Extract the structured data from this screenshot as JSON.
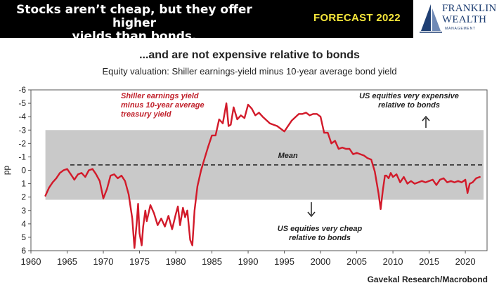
{
  "header": {
    "title_line1": "Stocks aren’t cheap, but they offer higher",
    "title_line2": "yields than bonds.",
    "badge": "FORECAST 2022",
    "logo": {
      "word1": "FRANKLIN",
      "word2": "WEALTH",
      "sub": "MANAGEMENT"
    }
  },
  "colors": {
    "banner": "#000000",
    "badge": "#f5e63b",
    "series": "#d21a2a",
    "band": "#c9c9c9",
    "annotation": "#c0202a",
    "logo": "#1f3f73"
  },
  "chart_data": {
    "type": "line",
    "title": "...and are not expensive relative to bonds",
    "subtitle": "Equity valuation: Shiller earnings-yield minus 10-year average bond yield",
    "ylabel": "pp",
    "y_inverted": true,
    "ylim": [
      -6,
      6
    ],
    "xlim": [
      1960,
      2023
    ],
    "yticks": [
      "-6",
      "-5",
      "-4",
      "-3",
      "-2",
      "-1",
      "0",
      "1",
      "2",
      "3",
      "4",
      "5",
      "6"
    ],
    "xticks": [
      "1960",
      "1965",
      "1970",
      "1975",
      "1980",
      "1985",
      "1990",
      "1995",
      "2000",
      "2005",
      "2010",
      "2015",
      "2020"
    ],
    "band": {
      "from": -3,
      "to": 2.2
    },
    "mean": -0.4,
    "series": [
      {
        "name": "Shiller earnings yield minus 10-year average treasury yield",
        "x": [
          1962.0,
          1962.5,
          1963.0,
          1963.5,
          1964.0,
          1964.5,
          1965.0,
          1965.5,
          1966.0,
          1966.5,
          1967.0,
          1967.5,
          1968.0,
          1968.5,
          1969.0,
          1969.5,
          1970.0,
          1970.5,
          1971.0,
          1971.5,
          1972.0,
          1972.5,
          1973.0,
          1973.5,
          1974.0,
          1974.3,
          1974.6,
          1974.8,
          1975.0,
          1975.3,
          1975.5,
          1975.8,
          1976.0,
          1976.5,
          1977.0,
          1977.5,
          1978.0,
          1978.5,
          1979.0,
          1979.5,
          1980.0,
          1980.3,
          1980.6,
          1981.0,
          1981.3,
          1981.6,
          1982.0,
          1982.3,
          1982.6,
          1983.0,
          1983.5,
          1984.0,
          1984.5,
          1985.0,
          1985.5,
          1986.0,
          1986.5,
          1987.0,
          1987.3,
          1987.6,
          1988.0,
          1988.5,
          1989.0,
          1989.5,
          1990.0,
          1990.5,
          1991.0,
          1991.5,
          1992.0,
          1993.0,
          1994.0,
          1995.0,
          1996.0,
          1997.0,
          1997.5,
          1998.0,
          1998.5,
          1999.0,
          1999.5,
          2000.0,
          2000.5,
          2001.0,
          2001.5,
          2002.0,
          2002.5,
          2003.0,
          2003.5,
          2004.0,
          2004.5,
          2005.0,
          2005.5,
          2006.0,
          2006.5,
          2007.0,
          2007.5,
          2008.0,
          2008.3,
          2008.6,
          2008.9,
          2009.1,
          2009.4,
          2009.7,
          2010.0,
          2010.5,
          2011.0,
          2011.5,
          2012.0,
          2012.5,
          2013.0,
          2013.5,
          2014.0,
          2014.5,
          2015.0,
          2015.5,
          2016.0,
          2016.5,
          2017.0,
          2017.5,
          2018.0,
          2018.5,
          2019.0,
          2019.5,
          2020.0,
          2020.3,
          2020.6,
          2021.0,
          2021.5,
          2022.0
        ],
        "y": [
          1.9,
          1.3,
          0.9,
          0.6,
          0.2,
          0.0,
          -0.1,
          0.3,
          0.7,
          0.3,
          0.2,
          0.5,
          0.0,
          -0.1,
          0.3,
          0.8,
          2.1,
          1.4,
          0.4,
          0.3,
          0.6,
          0.4,
          0.8,
          1.8,
          3.6,
          5.8,
          4.0,
          2.5,
          4.7,
          5.6,
          4.2,
          3.0,
          3.8,
          2.6,
          3.2,
          4.1,
          3.6,
          4.2,
          3.4,
          4.4,
          3.3,
          2.7,
          4.1,
          2.8,
          3.5,
          3.0,
          5.2,
          5.6,
          3.0,
          1.2,
          0.0,
          -0.9,
          -1.8,
          -2.6,
          -2.6,
          -3.8,
          -3.5,
          -5.0,
          -3.3,
          -3.4,
          -4.7,
          -3.8,
          -4.1,
          -3.9,
          -4.9,
          -4.6,
          -4.1,
          -4.3,
          -4.0,
          -3.5,
          -3.3,
          -2.9,
          -3.7,
          -4.2,
          -4.2,
          -4.3,
          -4.1,
          -4.2,
          -4.2,
          -4.0,
          -2.8,
          -2.8,
          -2.0,
          -2.2,
          -1.6,
          -1.7,
          -1.6,
          -1.6,
          -1.2,
          -1.3,
          -1.2,
          -1.1,
          -0.9,
          -0.8,
          0.1,
          1.7,
          2.9,
          1.5,
          0.4,
          0.4,
          0.6,
          0.2,
          0.5,
          0.3,
          0.9,
          0.5,
          1.0,
          0.8,
          1.0,
          0.9,
          0.8,
          0.9,
          0.8,
          0.7,
          1.1,
          0.7,
          0.6,
          0.9,
          0.8,
          0.9,
          0.8,
          0.9,
          0.7,
          1.7,
          1.0,
          0.9,
          0.6,
          0.5
        ]
      }
    ],
    "annotations": {
      "series_label": [
        "Shiller earnings yield",
        "minus 10-year average",
        "treasury yield"
      ],
      "mean_label": "Mean",
      "expensive": [
        "US equities very expensive",
        "relative to bonds"
      ],
      "cheap": [
        "US equities very cheap",
        "relative to bonds"
      ]
    },
    "source": "Gavekal Research/Macrobond"
  }
}
